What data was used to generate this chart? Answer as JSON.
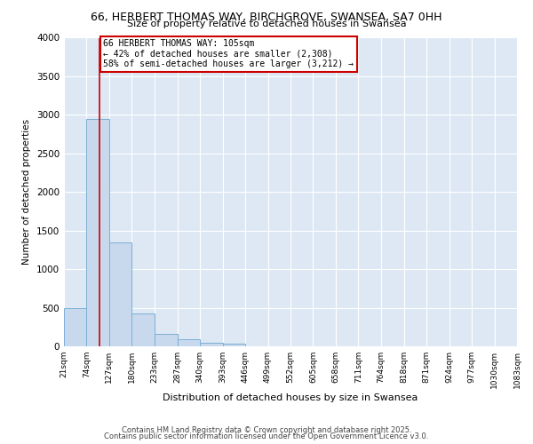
{
  "title_line1": "66, HERBERT THOMAS WAY, BIRCHGROVE, SWANSEA, SA7 0HH",
  "title_line2": "Size of property relative to detached houses in Swansea",
  "xlabel": "Distribution of detached houses by size in Swansea",
  "ylabel": "Number of detached properties",
  "bin_edges": [
    21,
    74,
    127,
    180,
    233,
    287,
    340,
    393,
    446,
    499,
    552,
    605,
    658,
    711,
    764,
    818,
    871,
    924,
    977,
    1030,
    1083
  ],
  "bar_heights": [
    500,
    2950,
    1350,
    430,
    160,
    90,
    50,
    30,
    0,
    0,
    0,
    0,
    0,
    0,
    0,
    0,
    0,
    0,
    0,
    0
  ],
  "bar_color": "#c8d9ee",
  "bar_edge_color": "#7bafd4",
  "vline_x": 105,
  "vline_color": "#cc0000",
  "annotation_line1": "66 HERBERT THOMAS WAY: 105sqm",
  "annotation_line2": "← 42% of detached houses are smaller (2,308)",
  "annotation_line3": "58% of semi-detached houses are larger (3,212) →",
  "annotation_box_color": "#ffffff",
  "annotation_box_edge": "#cc0000",
  "ylim": [
    0,
    4000
  ],
  "xlim_min": 21,
  "xlim_max": 1083,
  "background_color": "#dde8f4",
  "yticks": [
    0,
    500,
    1000,
    1500,
    2000,
    2500,
    3000,
    3500,
    4000
  ],
  "footer_line1": "Contains HM Land Registry data © Crown copyright and database right 2025.",
  "footer_line2": "Contains public sector information licensed under the Open Government Licence v3.0."
}
